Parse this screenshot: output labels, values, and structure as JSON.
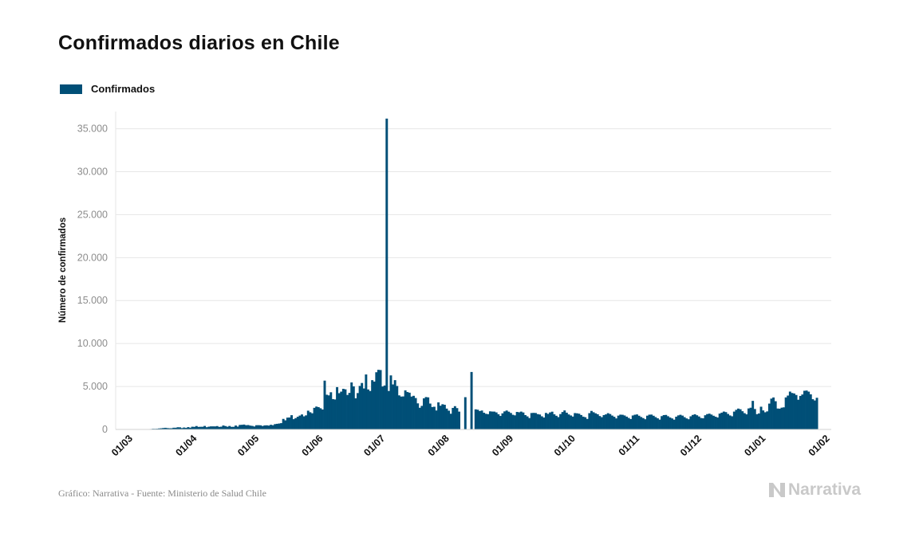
{
  "title": "Confirmados diarios en Chile",
  "legend": {
    "label": "Confirmados",
    "color": "#004f77"
  },
  "footer": "Gráfico: Narrativa - Fuente: Ministerio de Salud Chile",
  "brand": "Narrativa",
  "chart_data": {
    "type": "bar",
    "ylabel": "Número de confirmados",
    "ylim": [
      0,
      37000
    ],
    "yticks": [
      0,
      5000,
      10000,
      15000,
      20000,
      25000,
      30000,
      35000
    ],
    "ytick_labels": [
      "0",
      "5.000",
      "10.000",
      "15.000",
      "20.000",
      "25.000",
      "30.000",
      "35.000"
    ],
    "xticks": [
      "2020-03-01",
      "2020-04-01",
      "2020-05-01",
      "2020-06-01",
      "2020-07-01",
      "2020-08-01",
      "2020-09-01",
      "2020-10-01",
      "2020-11-01",
      "2020-12-01",
      "2021-01-01",
      "2021-02-01"
    ],
    "xtick_labels": [
      "01/03",
      "01/04",
      "01/05",
      "01/06",
      "01/07",
      "01/08",
      "01/09",
      "01/10",
      "01/11",
      "01/12",
      "01/01",
      "01/02"
    ],
    "xlim": [
      "2020-02-25",
      "2021-02-05"
    ],
    "grid": true,
    "legend_position": "top-left",
    "series": [
      {
        "name": "Confirmados",
        "color": "#004f77",
        "start": "2020-03-03",
        "values": [
          1,
          2,
          3,
          4,
          7,
          6,
          10,
          14,
          26,
          38,
          52,
          81,
          75,
          86,
          118,
          135,
          167,
          190,
          159,
          138,
          141,
          199,
          198,
          254,
          244,
          158,
          224,
          181,
          271,
          200,
          317,
          300,
          396,
          297,
          308,
          312,
          407,
          259,
          321,
          356,
          358,
          352,
          392,
          298,
          320,
          460,
          393,
          317,
          404,
          300,
          308,
          454,
          333,
          526,
          540,
          568,
          494,
          511,
          446,
          413,
          345,
          490,
          495,
          481,
          401,
          470,
          479,
          449,
          541,
          493,
          619,
          655,
          690,
          734,
          1228,
          1059,
          1373,
          1391,
          1658,
          1197,
          1320,
          1478,
          1615,
          1743,
          1525,
          1639,
          2183,
          2002,
          1880,
          2516,
          2663,
          2597,
          2465,
          2321,
          5682,
          4038,
          3964,
          4328,
          3531,
          3488,
          4925,
          4220,
          4401,
          4727,
          4668,
          4012,
          4255,
          5471,
          5011,
          3627,
          4232,
          5067,
          5407,
          4770,
          6402,
          4654,
          4477,
          5735,
          5570,
          6657,
          6938,
          6913,
          5001,
          5113,
          36179,
          4475,
          6290,
          5236,
          5737,
          5059,
          3964,
          3828,
          3841,
          4544,
          4354,
          4279,
          3827,
          3914,
          3658,
          3036,
          2521,
          2745,
          3622,
          3769,
          3733,
          3012,
          2609,
          2642,
          2208,
          3149,
          2763,
          2933,
          2872,
          2425,
          2184,
          1828,
          2506,
          2709,
          2483,
          2074,
          null,
          null,
          3755,
          null,
          null,
          6687,
          null,
          2340,
          2296,
          2142,
          2203,
          1943,
          1819,
          1780,
          2106,
          2083,
          2076,
          1983,
          1769,
          1571,
          1874,
          2101,
          2203,
          2066,
          1917,
          1707,
          1640,
          2039,
          1997,
          2077,
          1975,
          1670,
          1521,
          1325,
          1911,
          1930,
          1914,
          1785,
          1738,
          1531,
          1386,
          1924,
          1811,
          1981,
          2068,
          1764,
          1593,
          1437,
          1788,
          2027,
          2213,
          1950,
          1749,
          1627,
          1500,
          1903,
          1878,
          1831,
          1679,
          1491,
          1422,
          1222,
          1896,
          2157,
          2003,
          1877,
          1770,
          1560,
          1429,
          1671,
          1753,
          1893,
          1795,
          1616,
          1479,
          1284,
          1608,
          1722,
          1707,
          1627,
          1490,
          1341,
          1212,
          1625,
          1712,
          1747,
          1596,
          1446,
          1320,
          1189,
          1601,
          1720,
          1730,
          1594,
          1436,
          1297,
          1145,
          1551,
          1668,
          1690,
          1540,
          1392,
          1282,
          1139,
          1484,
          1635,
          1706,
          1610,
          1431,
          1285,
          1187,
          1529,
          1690,
          1764,
          1650,
          1507,
          1329,
          1295,
          1652,
          1788,
          1838,
          1732,
          1594,
          1486,
          1389,
          1845,
          1955,
          2081,
          2016,
          1806,
          1629,
          1532,
          2078,
          2283,
          2426,
          2350,
          2120,
          1896,
          1760,
          2443,
          2529,
          3325,
          2380,
          1778,
          1861,
          2646,
          2213,
          1997,
          2103,
          3008,
          3588,
          3723,
          3285,
          2435,
          2417,
          2535,
          2572,
          3729,
          3942,
          4406,
          4244,
          4186,
          4012,
          3456,
          3898,
          4068,
          4500,
          4530,
          4400,
          4088,
          3519,
          3371,
          3684
        ]
      }
    ]
  }
}
